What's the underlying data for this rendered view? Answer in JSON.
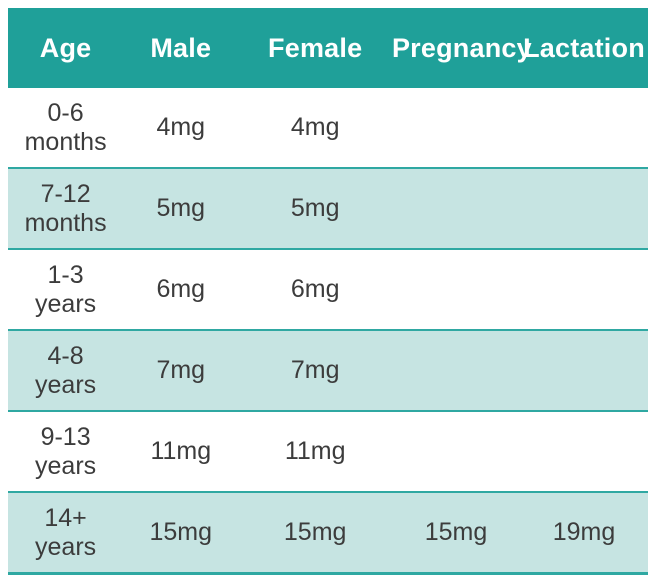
{
  "colors": {
    "header_bg": "#1FA099",
    "header_text": "#FFFFFF",
    "row_shaded_bg": "#C6E4E2",
    "row_border": "#2FA8A2",
    "cell_text": "#3C3C3C",
    "page_bg": "#FFFFFF"
  },
  "table": {
    "headers": [
      "Age",
      "Male",
      "Female",
      "Pregnancy",
      "Lactation"
    ],
    "rows": [
      {
        "age_range": "0-6",
        "age_unit": "months",
        "male": "4mg",
        "female": "4mg",
        "pregnancy": "",
        "lactation": ""
      },
      {
        "age_range": "7-12",
        "age_unit": "months",
        "male": "5mg",
        "female": "5mg",
        "pregnancy": "",
        "lactation": ""
      },
      {
        "age_range": "1-3",
        "age_unit": "years",
        "male": "6mg",
        "female": "6mg",
        "pregnancy": "",
        "lactation": ""
      },
      {
        "age_range": "4-8",
        "age_unit": "years",
        "male": "7mg",
        "female": "7mg",
        "pregnancy": "",
        "lactation": ""
      },
      {
        "age_range": "9-13",
        "age_unit": "years",
        "male": "11mg",
        "female": "11mg",
        "pregnancy": "",
        "lactation": ""
      },
      {
        "age_range": "14+",
        "age_unit": "years",
        "male": "15mg",
        "female": "15mg",
        "pregnancy": "15mg",
        "lactation": "19mg"
      }
    ]
  },
  "chart_data": {
    "type": "table",
    "columns": [
      "Age",
      "Male",
      "Female",
      "Pregnancy",
      "Lactation"
    ],
    "rows": [
      [
        "0-6 months",
        "4mg",
        "4mg",
        "",
        ""
      ],
      [
        "7-12 months",
        "5mg",
        "5mg",
        "",
        ""
      ],
      [
        "1-3 years",
        "6mg",
        "6mg",
        "",
        ""
      ],
      [
        "4-8 years",
        "7mg",
        "7mg",
        "",
        ""
      ],
      [
        "9-13 years",
        "11mg",
        "11mg",
        "",
        ""
      ],
      [
        "14+ years",
        "15mg",
        "15mg",
        "15mg",
        "19mg"
      ]
    ],
    "units": "mg",
    "layout_hints": {
      "header_style": "teal band, white bold text",
      "row_striping": "white / light teal alternating, teal rules on shaded rows"
    }
  }
}
